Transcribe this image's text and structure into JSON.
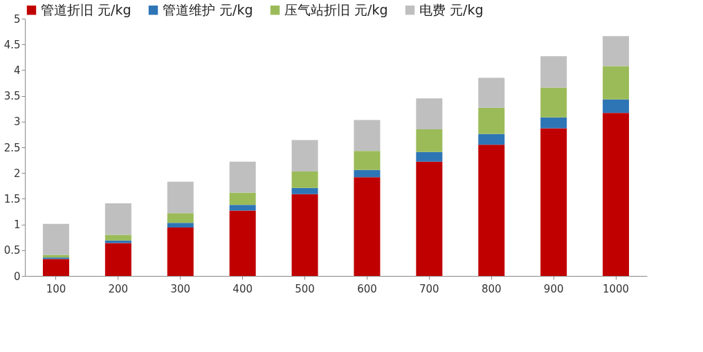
{
  "chart_data": {
    "type": "bar",
    "stacked": true,
    "categories": [
      "100",
      "200",
      "300",
      "400",
      "500",
      "600",
      "700",
      "800",
      "900",
      "1000"
    ],
    "series": [
      {
        "name": "管道折旧 元/kg",
        "color": "#c00000",
        "values": [
          0.33,
          0.64,
          0.94,
          1.27,
          1.59,
          1.92,
          2.22,
          2.55,
          2.87,
          3.17
        ]
      },
      {
        "name": "管道维护 元/kg",
        "color": "#2e75b6",
        "values": [
          0.03,
          0.05,
          0.09,
          0.11,
          0.12,
          0.14,
          0.19,
          0.21,
          0.21,
          0.26
        ]
      },
      {
        "name": "压气站折旧 元/kg",
        "color": "#9bbb59",
        "values": [
          0.05,
          0.11,
          0.19,
          0.24,
          0.32,
          0.37,
          0.44,
          0.51,
          0.58,
          0.65
        ]
      },
      {
        "name": "电费 元/kg",
        "color": "#bfbfbf",
        "values": [
          0.6,
          0.61,
          0.61,
          0.6,
          0.61,
          0.6,
          0.6,
          0.58,
          0.61,
          0.58
        ]
      }
    ],
    "ylim": [
      0,
      5
    ],
    "yticks": [
      0,
      0.5,
      1,
      1.5,
      2,
      2.5,
      3,
      3.5,
      4,
      4.5,
      5
    ],
    "grid": false,
    "legend": "top"
  }
}
